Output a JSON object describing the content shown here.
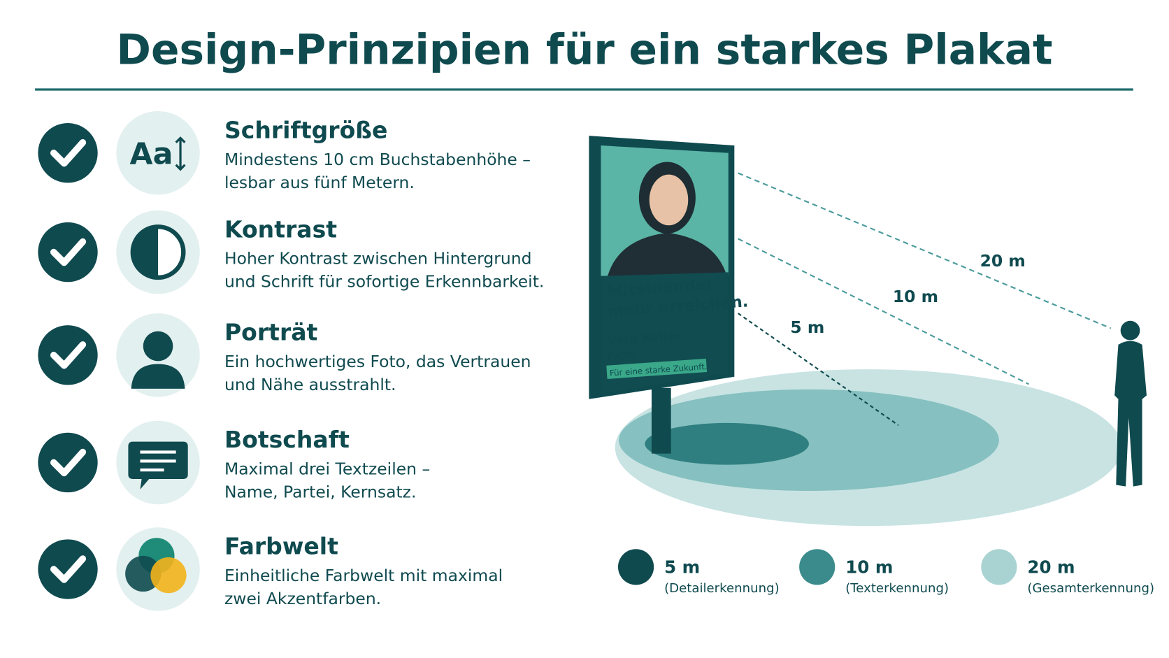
{
  "header": {
    "title": "Design-Prinzipien für ein starkes Plakat"
  },
  "principles": [
    {
      "title": "Schriftgröße",
      "lines": [
        "Mindestens 10 cm Buchstabenhöhe –",
        "lesbar aus fünf Metern."
      ],
      "icon": "Aa"
    },
    {
      "title": "Kontrast",
      "lines": [
        "Hoher Kontrast zwischen Hintergrund",
        "und Schrift für sofortige Erkennbarkeit."
      ]
    },
    {
      "title": "Porträt",
      "lines": [
        "Ein hochwertiges Foto, das Vertrauen",
        "und Nähe ausstrahlt."
      ]
    },
    {
      "title": "Botschaft",
      "lines": [
        "Maximal drei Textzeilen –",
        "Name, Partei, Kernsatz."
      ]
    },
    {
      "title": "Farbwelt",
      "lines": [
        "Einheitliche Farbwelt mit maximal",
        "zwei Akzentfarben."
      ]
    }
  ],
  "poster": {
    "headline": [
      "Miteinander",
      "mehr erreichen."
    ],
    "name": "Vera Keller",
    "party": "Partei",
    "slogan": "Für eine starke Zukunft."
  },
  "distances": [
    "20 m",
    "10 m",
    "5 m"
  ],
  "legend": [
    {
      "label": "5 m",
      "sub": "(Detailerkennung)"
    },
    {
      "label": "10 m",
      "sub": "(Texterkennung)"
    },
    {
      "label": "20 m",
      "sub": "(Gesamterkennung)"
    }
  ]
}
